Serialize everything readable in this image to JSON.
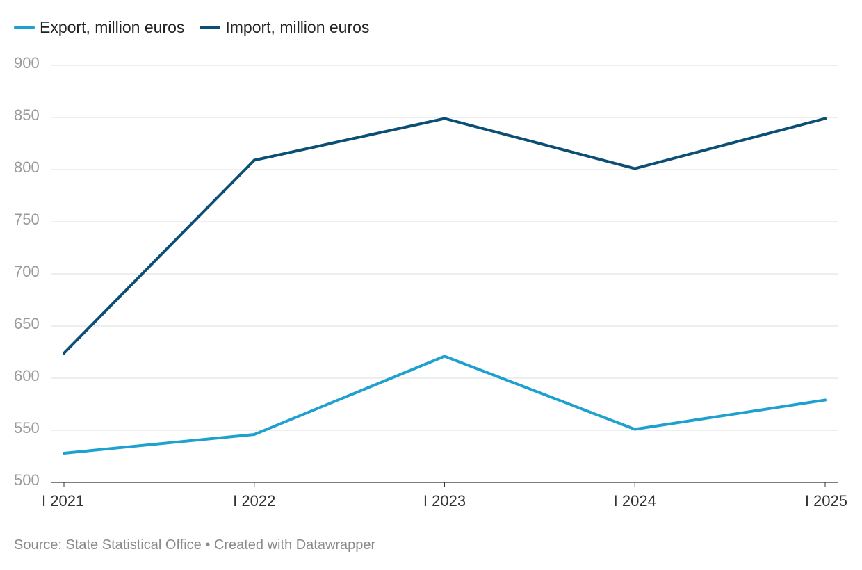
{
  "chart_data": {
    "type": "line",
    "x": [
      "I 2021",
      "I 2022",
      "I 2023",
      "I 2024",
      "I 2025"
    ],
    "series": [
      {
        "name": "Export, million euros",
        "color": "#1fa1d0",
        "values": [
          528,
          546,
          621,
          551,
          579
        ]
      },
      {
        "name": "Import, million euros",
        "color": "#0b4f74",
        "values": [
          624,
          809,
          849,
          801,
          849
        ]
      }
    ],
    "y_ticks": [
      500,
      550,
      600,
      650,
      700,
      750,
      800,
      850,
      900
    ],
    "ylim": [
      500,
      900
    ],
    "grid": true,
    "legend_position": "top-left",
    "xlabel": "",
    "ylabel": ""
  },
  "footer": {
    "source": "Source: State Statistical Office • Created with Datawrapper"
  }
}
